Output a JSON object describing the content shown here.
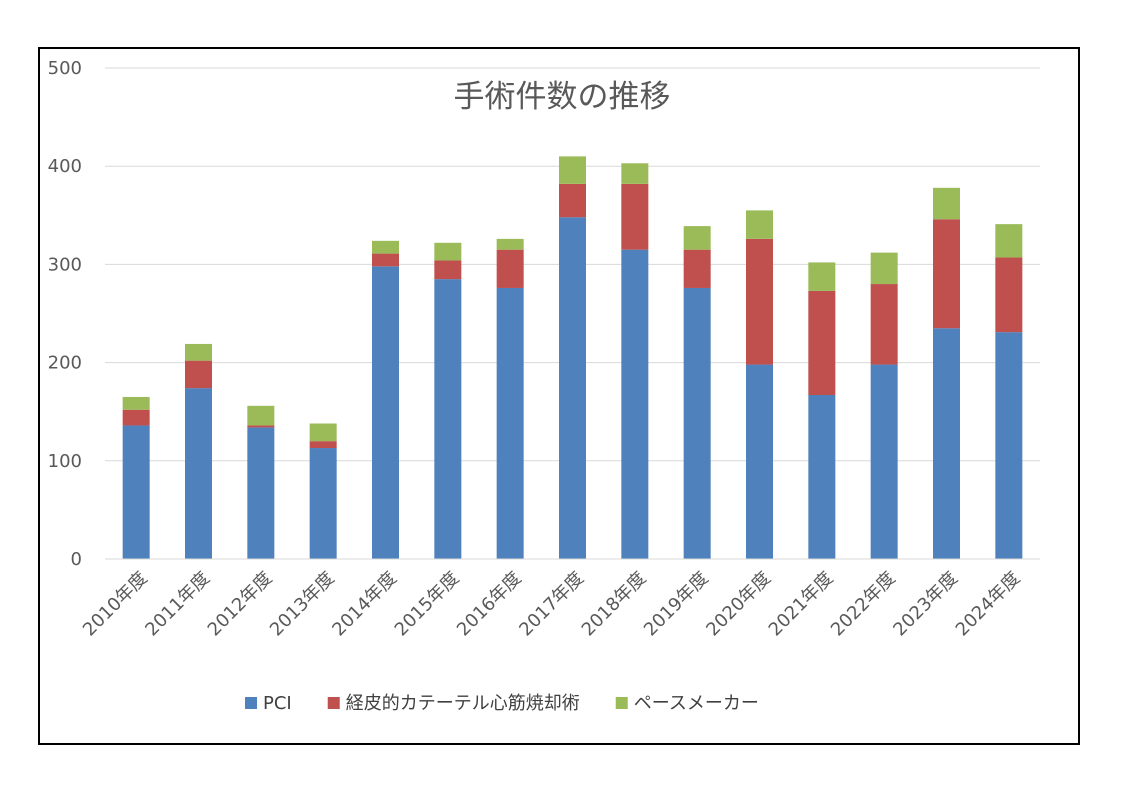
{
  "chart_data": {
    "type": "bar",
    "stacked": true,
    "title": "手術件数の推移",
    "xlabel": "",
    "ylabel": "",
    "ylim": [
      0,
      500
    ],
    "yticks": [
      0,
      100,
      200,
      300,
      400,
      500
    ],
    "grid": true,
    "legend_position": "bottom",
    "categories": [
      "2010年度",
      "2011年度",
      "2012年度",
      "2013年度",
      "2014年度",
      "2015年度",
      "2016年度",
      "2017年度",
      "2018年度",
      "2019年度",
      "2020年度",
      "2021年度",
      "2022年度",
      "2023年度",
      "2024年度"
    ],
    "series": [
      {
        "name": "PCI",
        "color": "#4f81bd",
        "values": [
          136,
          174,
          134,
          113,
          298,
          285,
          276,
          348,
          315,
          276,
          198,
          167,
          198,
          235,
          231
        ]
      },
      {
        "name": "経皮的カテーテル心筋焼却術",
        "color": "#c0504d",
        "values": [
          16,
          28,
          2,
          7,
          13,
          19,
          39,
          34,
          67,
          39,
          128,
          106,
          82,
          111,
          76
        ]
      },
      {
        "name": "ペースメーカー",
        "color": "#9bbb59",
        "values": [
          13,
          17,
          20,
          18,
          13,
          18,
          11,
          28,
          21,
          24,
          29,
          29,
          32,
          32,
          34
        ]
      }
    ]
  }
}
